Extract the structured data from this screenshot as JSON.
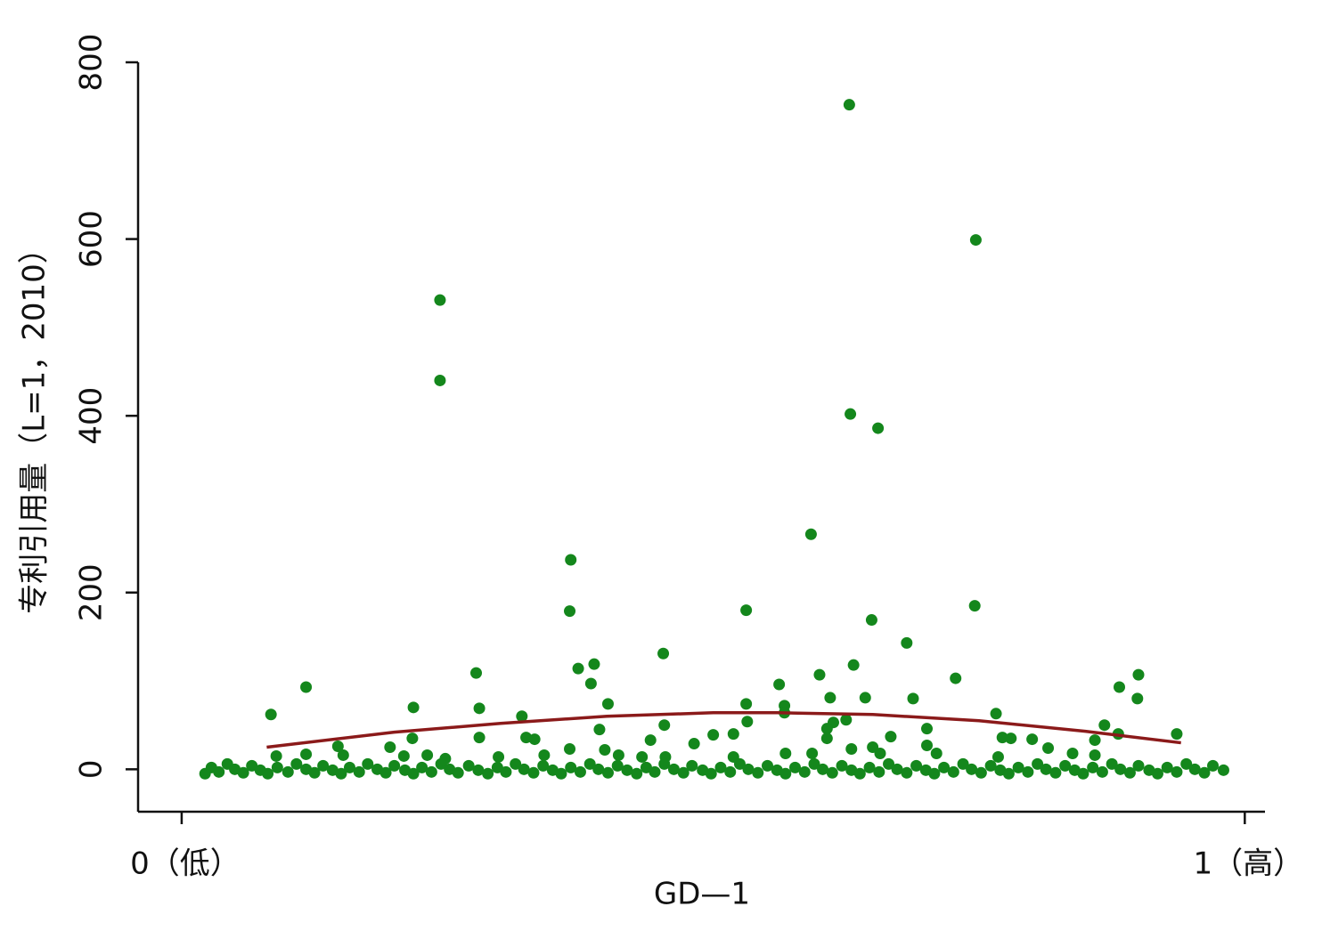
{
  "chart_data": {
    "type": "scatter",
    "xlabel": "GD—1",
    "ylabel": "专利引用量（L=1，2010）",
    "xlim": [
      -0.041,
      1.019
    ],
    "ylim": [
      -48,
      800
    ],
    "xticks": [
      {
        "value": 0,
        "label": "0（低）"
      },
      {
        "value": 1,
        "label": "1（高）"
      }
    ],
    "yticks": [
      0,
      200,
      400,
      600,
      800
    ],
    "color": "#14871c",
    "x": [
      0.628,
      0.747,
      0.243,
      0.243,
      0.629,
      0.655,
      0.592,
      0.366,
      0.365,
      0.531,
      0.746,
      0.649,
      0.682,
      0.453,
      0.388,
      0.373,
      0.632,
      0.277,
      0.6,
      0.9,
      0.117,
      0.385,
      0.562,
      0.728,
      0.882,
      0.61,
      0.643,
      0.688,
      0.899,
      0.218,
      0.28,
      0.401,
      0.531,
      0.567,
      0.084,
      0.32,
      0.766,
      0.567,
      0.532,
      0.625,
      0.613,
      0.868,
      0.454,
      0.393,
      0.607,
      0.701,
      0.881,
      0.936,
      0.5,
      0.519,
      0.217,
      0.28,
      0.324,
      0.332,
      0.441,
      0.482,
      0.607,
      0.667,
      0.772,
      0.78,
      0.8,
      0.859,
      0.147,
      0.196,
      0.365,
      0.398,
      0.63,
      0.65,
      0.701,
      0.815,
      0.089,
      0.117,
      0.152,
      0.209,
      0.231,
      0.248,
      0.298,
      0.341,
      0.411,
      0.433,
      0.455,
      0.519,
      0.568,
      0.593,
      0.657,
      0.71,
      0.768,
      0.838,
      0.859,
      0.022,
      0.028,
      0.035,
      0.043,
      0.05,
      0.058,
      0.066,
      0.074,
      0.081,
      0.09,
      0.1,
      0.108,
      0.117,
      0.125,
      0.133,
      0.142,
      0.15,
      0.158,
      0.167,
      0.175,
      0.184,
      0.192,
      0.2,
      0.21,
      0.218,
      0.226,
      0.235,
      0.244,
      0.252,
      0.26,
      0.27,
      0.279,
      0.288,
      0.297,
      0.305,
      0.314,
      0.322,
      0.331,
      0.34,
      0.349,
      0.357,
      0.366,
      0.375,
      0.384,
      0.392,
      0.401,
      0.41,
      0.419,
      0.428,
      0.437,
      0.445,
      0.454,
      0.463,
      0.472,
      0.48,
      0.49,
      0.498,
      0.507,
      0.516,
      0.525,
      0.533,
      0.542,
      0.551,
      0.56,
      0.568,
      0.577,
      0.586,
      0.595,
      0.603,
      0.612,
      0.621,
      0.63,
      0.638,
      0.647,
      0.656,
      0.665,
      0.673,
      0.682,
      0.691,
      0.7,
      0.708,
      0.717,
      0.726,
      0.735,
      0.743,
      0.752,
      0.761,
      0.77,
      0.778,
      0.787,
      0.796,
      0.805,
      0.813,
      0.822,
      0.831,
      0.84,
      0.848,
      0.857,
      0.866,
      0.875,
      0.883,
      0.892,
      0.9,
      0.91,
      0.918,
      0.927,
      0.936,
      0.945,
      0.953,
      0.962,
      0.97,
      0.98
    ],
    "values": [
      752,
      599,
      531,
      440,
      402,
      386,
      266,
      237,
      179,
      180,
      185,
      169,
      143,
      131,
      119,
      114,
      118,
      109,
      107,
      107,
      93,
      97,
      96,
      103,
      93,
      81,
      81,
      80,
      80,
      70,
      69,
      74,
      74,
      72,
      62,
      60,
      63,
      64,
      54,
      56,
      53,
      50,
      50,
      45,
      46,
      46,
      40,
      40,
      39,
      40,
      35,
      36,
      36,
      34,
      33,
      29,
      35,
      37,
      36,
      35,
      34,
      33,
      26,
      25,
      23,
      22,
      23,
      25,
      27,
      24,
      15,
      17,
      16,
      15,
      16,
      12,
      14,
      16,
      16,
      14,
      14,
      14,
      18,
      18,
      18,
      18,
      14,
      18,
      16,
      -5,
      2,
      -3,
      6,
      0,
      -4,
      4,
      -1,
      -5,
      2,
      -3,
      6,
      0,
      -4,
      4,
      -1,
      -5,
      2,
      -3,
      6,
      0,
      -4,
      4,
      -1,
      -5,
      2,
      -3,
      6,
      0,
      -4,
      4,
      -1,
      -5,
      2,
      -3,
      6,
      0,
      -4,
      4,
      -1,
      -5,
      2,
      -3,
      6,
      0,
      -4,
      4,
      -1,
      -5,
      2,
      -3,
      6,
      0,
      -4,
      4,
      -1,
      -5,
      2,
      -3,
      6,
      0,
      -4,
      4,
      -1,
      -5,
      2,
      -3,
      6,
      0,
      -4,
      4,
      -1,
      -5,
      2,
      -3,
      6,
      0,
      -4,
      4,
      -1,
      -5,
      2,
      -3,
      6,
      0,
      -4,
      4,
      -1,
      -5,
      2,
      -3,
      6,
      0,
      -4,
      4,
      -1,
      -5,
      2,
      -3,
      6,
      0,
      -4,
      4,
      -1,
      -5,
      2,
      -3,
      6,
      0,
      -4,
      4,
      -1
    ],
    "fit": {
      "color": "#8b1a1a",
      "x": [
        0.08,
        0.2,
        0.3,
        0.4,
        0.5,
        0.56,
        0.65,
        0.75,
        0.85,
        0.94
      ],
      "values": [
        25,
        42,
        52,
        60,
        64,
        64,
        62,
        55,
        43,
        30
      ]
    }
  }
}
